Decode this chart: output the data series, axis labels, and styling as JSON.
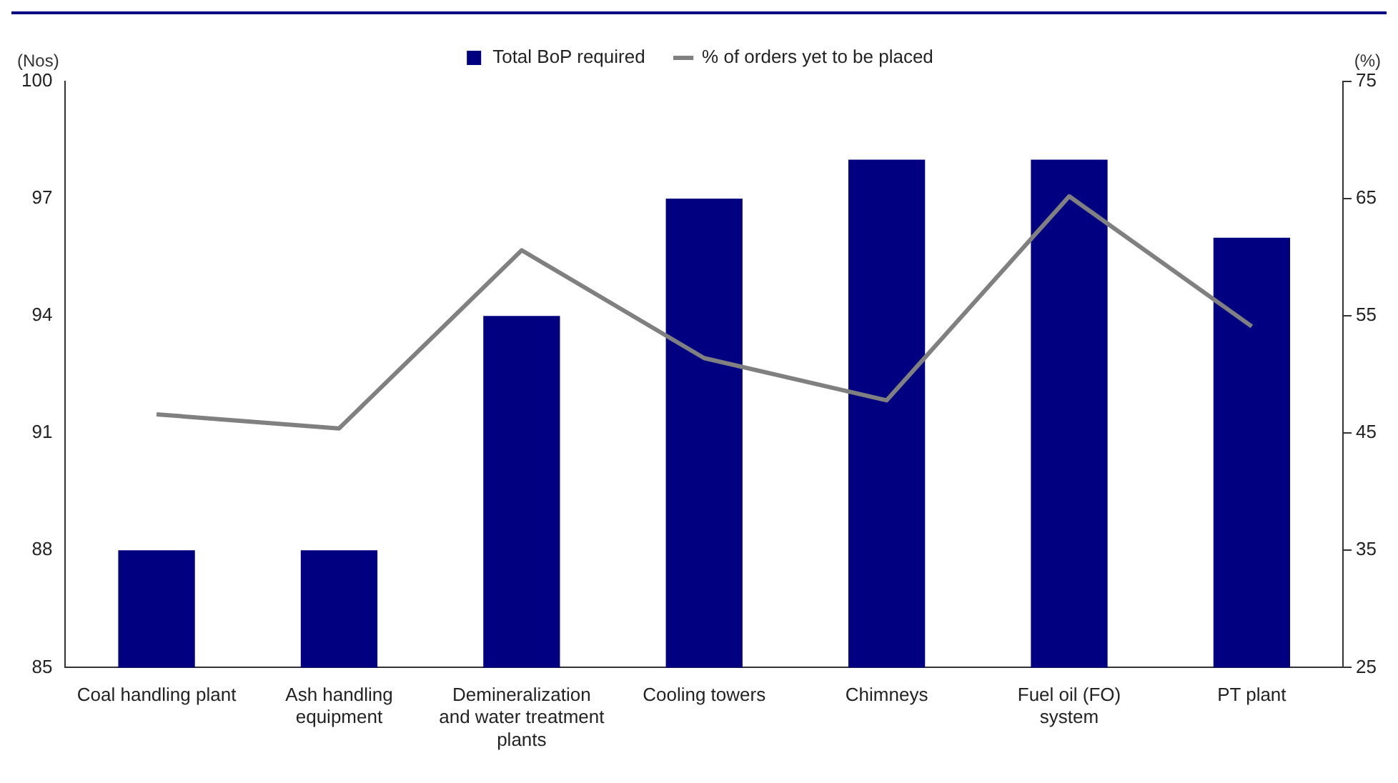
{
  "chart_data": {
    "type": "bar",
    "categories": [
      "Coal handling plant",
      "Ash handling equipment",
      "Demineralization and water treatment plants",
      "Cooling towers",
      "Chimneys",
      "Fuel oil (FO) system",
      "PT plant"
    ],
    "series": [
      {
        "name": "Total BoP required",
        "color": "#000080",
        "values": [
          88,
          88,
          94,
          97,
          98,
          98,
          96
        ]
      },
      {
        "name": "% of orders yet to be placed",
        "type": "line",
        "axis": "y2",
        "color": "#808080",
        "values": [
          46.6,
          45.4,
          60.6,
          51.4,
          47.8,
          65.2,
          54.1
        ]
      }
    ],
    "ylabel": "(Nos)",
    "y2label": "(%)",
    "ylim": [
      85,
      100
    ],
    "yticks": [
      85,
      88,
      91,
      94,
      97,
      100
    ],
    "y2lim": [
      25,
      75
    ],
    "y2ticks": [
      25,
      35,
      45,
      55,
      65,
      75
    ],
    "grid": false,
    "legend": "top",
    "marker": "none",
    "line_style": "solid"
  }
}
